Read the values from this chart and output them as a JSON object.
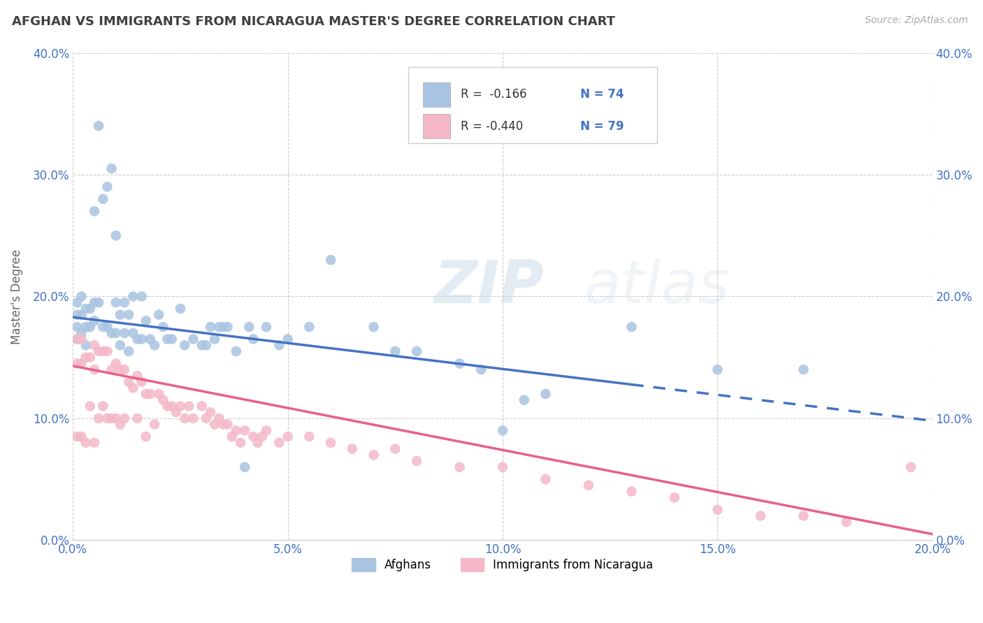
{
  "title": "AFGHAN VS IMMIGRANTS FROM NICARAGUA MASTER'S DEGREE CORRELATION CHART",
  "source": "Source: ZipAtlas.com",
  "ylabel": "Master's Degree",
  "xlim": [
    0.0,
    0.2
  ],
  "ylim": [
    0.0,
    0.4
  ],
  "color_afghan": "#a8c4e0",
  "color_nicaragua": "#f4b8c8",
  "color_line_afghan": "#4472c4",
  "color_line_nicaragua": "#e8608a",
  "color_axis_labels": "#4472c4",
  "color_title": "#404040",
  "afghan_line_y0": 0.183,
  "afghan_line_y1": 0.098,
  "nic_line_y0": 0.143,
  "nic_line_y1": 0.005,
  "afghan_x": [
    0.001,
    0.001,
    0.001,
    0.001,
    0.002,
    0.002,
    0.002,
    0.003,
    0.003,
    0.003,
    0.004,
    0.004,
    0.005,
    0.005,
    0.005,
    0.006,
    0.006,
    0.007,
    0.007,
    0.008,
    0.008,
    0.009,
    0.009,
    0.01,
    0.01,
    0.01,
    0.011,
    0.011,
    0.012,
    0.012,
    0.013,
    0.013,
    0.014,
    0.014,
    0.015,
    0.016,
    0.016,
    0.017,
    0.018,
    0.019,
    0.02,
    0.021,
    0.022,
    0.023,
    0.025,
    0.026,
    0.028,
    0.03,
    0.031,
    0.032,
    0.033,
    0.034,
    0.035,
    0.036,
    0.038,
    0.04,
    0.041,
    0.042,
    0.045,
    0.048,
    0.05,
    0.055,
    0.06,
    0.07,
    0.075,
    0.08,
    0.09,
    0.095,
    0.1,
    0.105,
    0.11,
    0.13,
    0.15,
    0.17
  ],
  "afghan_y": [
    0.195,
    0.185,
    0.175,
    0.165,
    0.2,
    0.185,
    0.17,
    0.19,
    0.175,
    0.16,
    0.19,
    0.175,
    0.27,
    0.195,
    0.18,
    0.34,
    0.195,
    0.28,
    0.175,
    0.29,
    0.175,
    0.305,
    0.17,
    0.25,
    0.195,
    0.17,
    0.185,
    0.16,
    0.195,
    0.17,
    0.185,
    0.155,
    0.2,
    0.17,
    0.165,
    0.2,
    0.165,
    0.18,
    0.165,
    0.16,
    0.185,
    0.175,
    0.165,
    0.165,
    0.19,
    0.16,
    0.165,
    0.16,
    0.16,
    0.175,
    0.165,
    0.175,
    0.175,
    0.175,
    0.155,
    0.06,
    0.175,
    0.165,
    0.175,
    0.16,
    0.165,
    0.175,
    0.23,
    0.175,
    0.155,
    0.155,
    0.145,
    0.14,
    0.09,
    0.115,
    0.12,
    0.175,
    0.14,
    0.14
  ],
  "nic_x": [
    0.001,
    0.001,
    0.001,
    0.002,
    0.002,
    0.002,
    0.003,
    0.003,
    0.004,
    0.004,
    0.005,
    0.005,
    0.005,
    0.006,
    0.006,
    0.007,
    0.007,
    0.008,
    0.008,
    0.009,
    0.009,
    0.01,
    0.01,
    0.011,
    0.011,
    0.012,
    0.012,
    0.013,
    0.014,
    0.015,
    0.015,
    0.016,
    0.017,
    0.017,
    0.018,
    0.019,
    0.02,
    0.021,
    0.022,
    0.023,
    0.024,
    0.025,
    0.026,
    0.027,
    0.028,
    0.03,
    0.031,
    0.032,
    0.033,
    0.034,
    0.035,
    0.036,
    0.037,
    0.038,
    0.039,
    0.04,
    0.042,
    0.043,
    0.044,
    0.045,
    0.048,
    0.05,
    0.055,
    0.06,
    0.065,
    0.07,
    0.075,
    0.08,
    0.09,
    0.1,
    0.11,
    0.12,
    0.13,
    0.14,
    0.15,
    0.16,
    0.17,
    0.18,
    0.195
  ],
  "nic_y": [
    0.165,
    0.145,
    0.085,
    0.165,
    0.145,
    0.085,
    0.15,
    0.08,
    0.15,
    0.11,
    0.16,
    0.14,
    0.08,
    0.155,
    0.1,
    0.155,
    0.11,
    0.155,
    0.1,
    0.14,
    0.1,
    0.145,
    0.1,
    0.14,
    0.095,
    0.14,
    0.1,
    0.13,
    0.125,
    0.135,
    0.1,
    0.13,
    0.12,
    0.085,
    0.12,
    0.095,
    0.12,
    0.115,
    0.11,
    0.11,
    0.105,
    0.11,
    0.1,
    0.11,
    0.1,
    0.11,
    0.1,
    0.105,
    0.095,
    0.1,
    0.095,
    0.095,
    0.085,
    0.09,
    0.08,
    0.09,
    0.085,
    0.08,
    0.085,
    0.09,
    0.08,
    0.085,
    0.085,
    0.08,
    0.075,
    0.07,
    0.075,
    0.065,
    0.06,
    0.06,
    0.05,
    0.045,
    0.04,
    0.035,
    0.025,
    0.02,
    0.02,
    0.015,
    0.06
  ]
}
